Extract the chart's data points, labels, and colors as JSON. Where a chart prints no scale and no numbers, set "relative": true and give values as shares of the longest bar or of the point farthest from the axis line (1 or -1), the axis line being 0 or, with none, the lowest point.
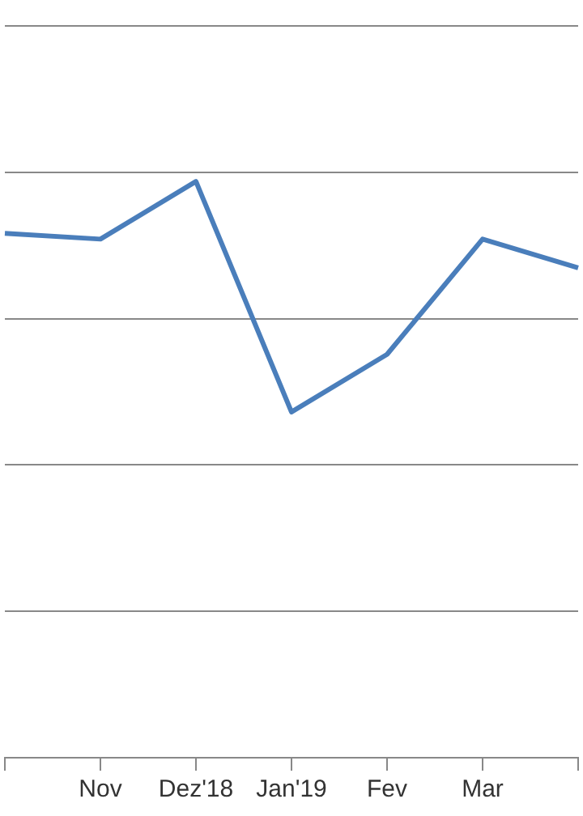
{
  "chart_data": {
    "type": "line",
    "relative": true,
    "categories": [
      null,
      "Nov",
      "Dez'18",
      "Jan'19",
      "Fev",
      "Mar",
      null
    ],
    "series": [
      {
        "color": "#4a7ebb",
        "values": [
          0.91,
          0.9,
          1,
          0.6,
          0.7,
          0.9,
          0.85
        ]
      }
    ],
    "grid": "y",
    "legend": false,
    "marker": "none",
    "line_style": "solid"
  }
}
